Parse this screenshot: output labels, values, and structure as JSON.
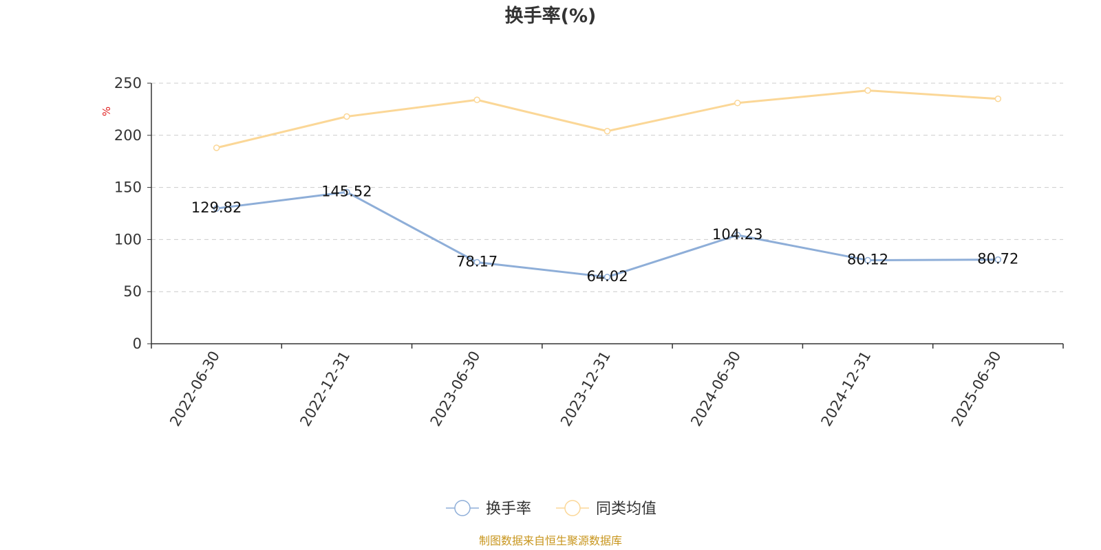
{
  "chart_data": {
    "type": "line",
    "title": "换手率(%)",
    "ylabel": "%",
    "xlabel": "",
    "categories": [
      "2022-06-30",
      "2022-12-31",
      "2023-06-30",
      "2023-12-31",
      "2024-06-30",
      "2024-12-31",
      "2025-06-30"
    ],
    "ylim": [
      0,
      250
    ],
    "yticks": [
      0,
      50,
      100,
      150,
      200,
      250
    ],
    "grid": true,
    "legend_position": "bottom-center",
    "series": [
      {
        "name": "换手率",
        "values": [
          129.82,
          145.52,
          78.17,
          64.02,
          104.23,
          80.12,
          80.72
        ],
        "data_labels": [
          "129.82",
          "145.52",
          "78.17",
          "64.02",
          "104.23",
          "80.12",
          "80.72"
        ],
        "color": "#8eaed8"
      },
      {
        "name": "同类均值",
        "values": [
          188,
          218,
          234,
          204,
          231,
          243,
          235
        ],
        "color": "#fbd797"
      }
    ]
  },
  "colors": {
    "axis": "#333333",
    "grid": "#cccccc",
    "unit": "#e02020",
    "source": "#c8961e"
  },
  "footer": {
    "source": "制图数据来自恒生聚源数据库"
  }
}
